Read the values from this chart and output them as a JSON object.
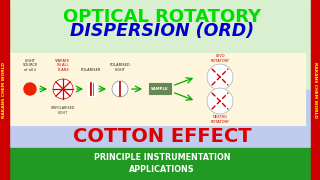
{
  "bg_top": "#d8f0d0",
  "bg_mid": "#c0ccee",
  "bg_bot": "#229922",
  "title1": "OPTICAL ROTATORY",
  "title2": "DISPERSION (ORD)",
  "title1_color": "#00dd00",
  "title2_color": "#0000cc",
  "cotton_text": "COTTON EFFECT",
  "cotton_color": "#dd0000",
  "bottom_line1": "PRINCIPLE INSTRUMENTATION",
  "bottom_line2": "APPLICATIONS",
  "bottom_text_color": "#ffffff",
  "side_left_text": "RAKANS CHEM WORLD",
  "side_right_text": "RAKANS CHEM WORLD",
  "side_color": "#cc0000",
  "diagram_bg": "#fdf5dc",
  "diagram_border": "#aaaaaa"
}
